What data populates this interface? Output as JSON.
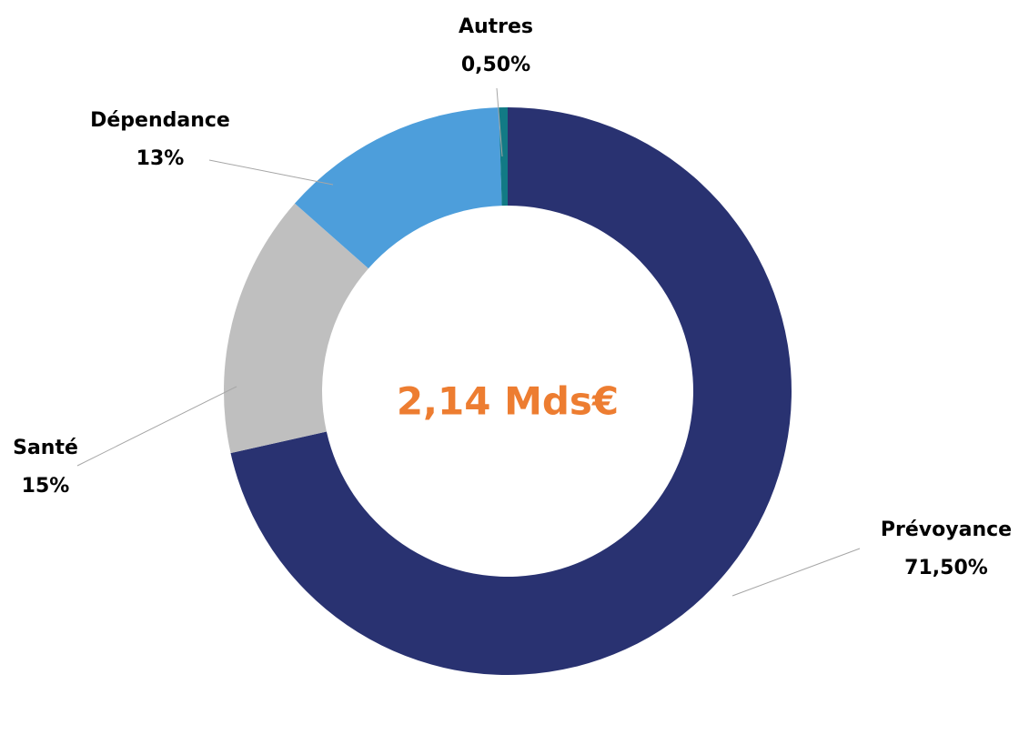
{
  "chart_data": {
    "type": "donut",
    "center_label": "2,14 Mds€",
    "categories": [
      "Prévoyance",
      "Santé",
      "Dépendance",
      "Autres"
    ],
    "values": [
      71.5,
      15,
      13,
      0.5
    ],
    "value_labels": [
      "71,50%",
      "15%",
      "13%",
      "0,50%"
    ],
    "colors": [
      "#293271",
      "#bfbfbf",
      "#4d9edb",
      "#127a85"
    ]
  }
}
